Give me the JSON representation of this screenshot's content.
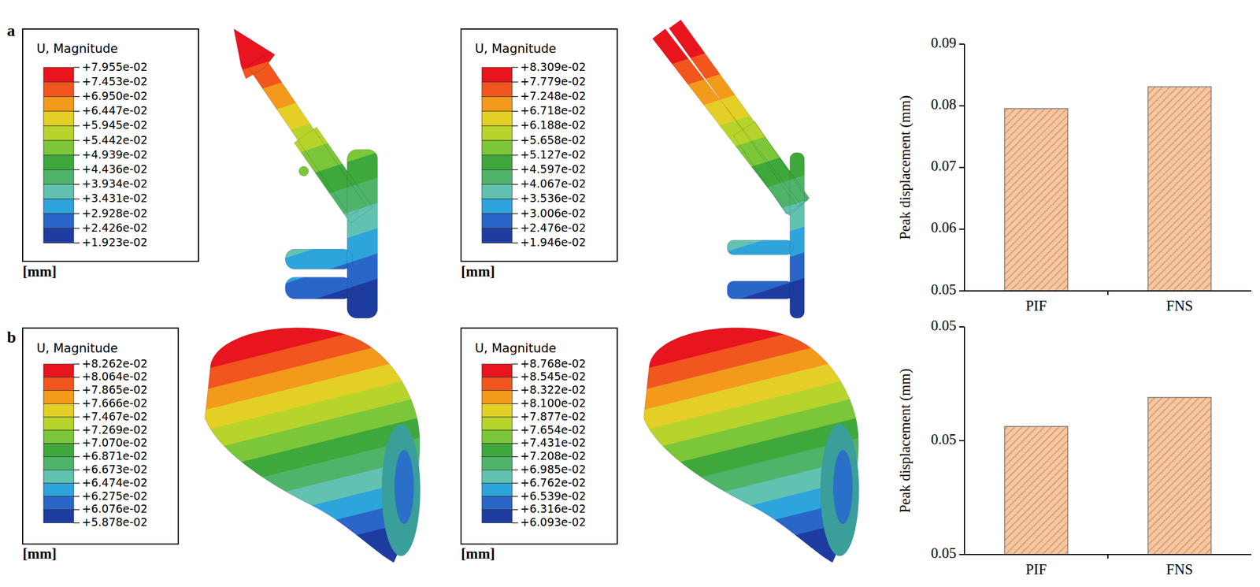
{
  "panel_labels": [
    "a",
    "b"
  ],
  "contour_legends": [
    {
      "title": "U, Magnitude",
      "unit": "[mm]",
      "labels": [
        "+7.955e-02",
        "+7.453e-02",
        "+6.950e-02",
        "+6.447e-02",
        "+5.945e-02",
        "+5.442e-02",
        "+4.939e-02",
        "+4.436e-02",
        "+3.934e-02",
        "+3.431e-02",
        "+2.928e-02",
        "+2.426e-02",
        "+1.923e-02"
      ]
    },
    {
      "title": "U, Magnitude",
      "unit": "[mm]",
      "labels": [
        "+8.309e-02",
        "+7.779e-02",
        "+7.248e-02",
        "+6.718e-02",
        "+6.188e-02",
        "+5.658e-02",
        "+5.127e-02",
        "+4.597e-02",
        "+4.067e-02",
        "+3.536e-02",
        "+3.006e-02",
        "+2.476e-02",
        "+1.946e-02"
      ]
    },
    {
      "title": "U, Magnitude",
      "unit": "[mm]",
      "labels": [
        "+8.262e-02",
        "+8.064e-02",
        "+7.865e-02",
        "+7.666e-02",
        "+7.467e-02",
        "+7.269e-02",
        "+7.070e-02",
        "+6.871e-02",
        "+6.673e-02",
        "+6.474e-02",
        "+6.275e-02",
        "+6.076e-02",
        "+5.878e-02"
      ]
    },
    {
      "title": "U, Magnitude",
      "unit": "[mm]",
      "labels": [
        "+8.768e-02",
        "+8.545e-02",
        "+8.322e-02",
        "+8.100e-02",
        "+7.877e-02",
        "+7.654e-02",
        "+7.431e-02",
        "+7.208e-02",
        "+6.985e-02",
        "+6.762e-02",
        "+6.539e-02",
        "+6.316e-02",
        "+6.093e-02"
      ]
    }
  ],
  "chart_data": [
    {
      "type": "bar",
      "ylabel": "Peak displacement (mm)",
      "categories": [
        "PIF",
        "FNS"
      ],
      "values": [
        0.07955,
        0.08309
      ],
      "color": "#f5c6a0",
      "ylim": [
        0.05,
        0.09
      ],
      "yticks": [
        0.05,
        0.06,
        0.07,
        0.08,
        0.09
      ]
    },
    {
      "type": "bar",
      "ylabel": "Peak displacement (mm)",
      "categories": [
        "PIF",
        "FNS"
      ],
      "values": [
        0.05225,
        0.05276
      ],
      "color": "#f5c6a0",
      "ylim": [
        0.05,
        0.054
      ],
      "yticks": [
        {
          "value": 0.05,
          "label": "0.05"
        },
        {
          "value": 0.052,
          "label": "0.05"
        },
        {
          "value": 0.054,
          "label": "0.05"
        }
      ]
    }
  ]
}
